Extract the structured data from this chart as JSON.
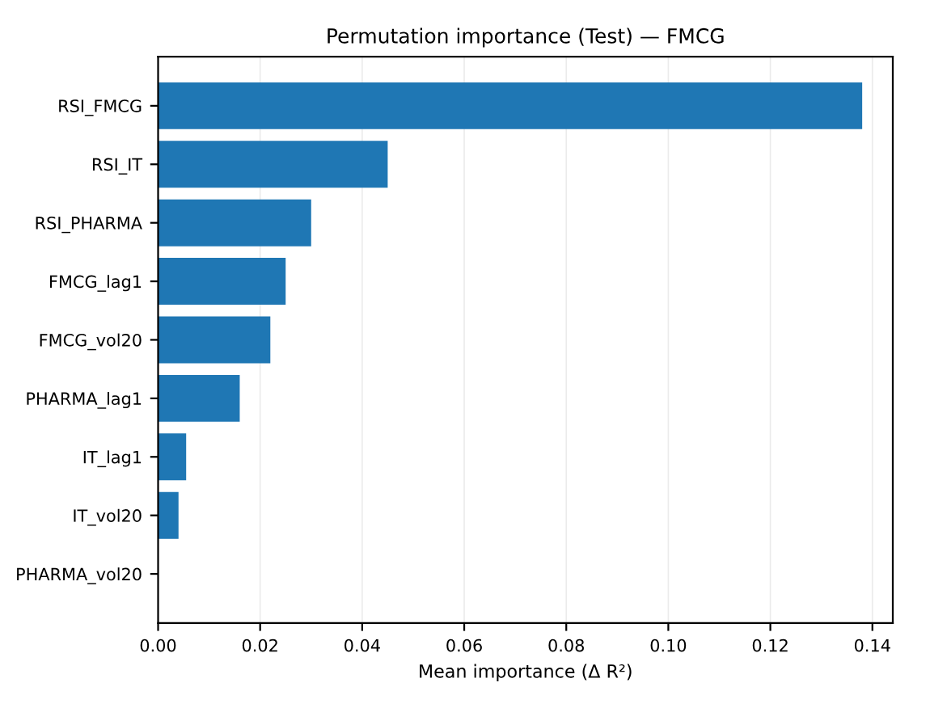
{
  "chart_data": {
    "type": "bar",
    "orientation": "horizontal",
    "title": "Permutation importance (Test) — FMCG",
    "xlabel": "Mean importance (Δ R²)",
    "categories": [
      "RSI_FMCG",
      "RSI_IT",
      "RSI_PHARMA",
      "FMCG_lag1",
      "FMCG_vol20",
      "PHARMA_lag1",
      "IT_lag1",
      "IT_vol20",
      "PHARMA_vol20"
    ],
    "values": [
      0.138,
      0.045,
      0.03,
      0.025,
      0.022,
      0.016,
      0.0055,
      0.004,
      0.0
    ],
    "color": "#1f77b4",
    "xlim": [
      0,
      0.144
    ],
    "xticks": [
      {
        "value": 0,
        "label": "0.00"
      },
      {
        "value": 0.02,
        "label": "0.02"
      },
      {
        "value": 0.04,
        "label": "0.04"
      },
      {
        "value": 0.06,
        "label": "0.06"
      },
      {
        "value": 0.08,
        "label": "0.08"
      },
      {
        "value": 0.1,
        "label": "0.10"
      },
      {
        "value": 0.12,
        "label": "0.12"
      },
      {
        "value": 0.14,
        "label": "0.14"
      }
    ],
    "grid": "x"
  }
}
